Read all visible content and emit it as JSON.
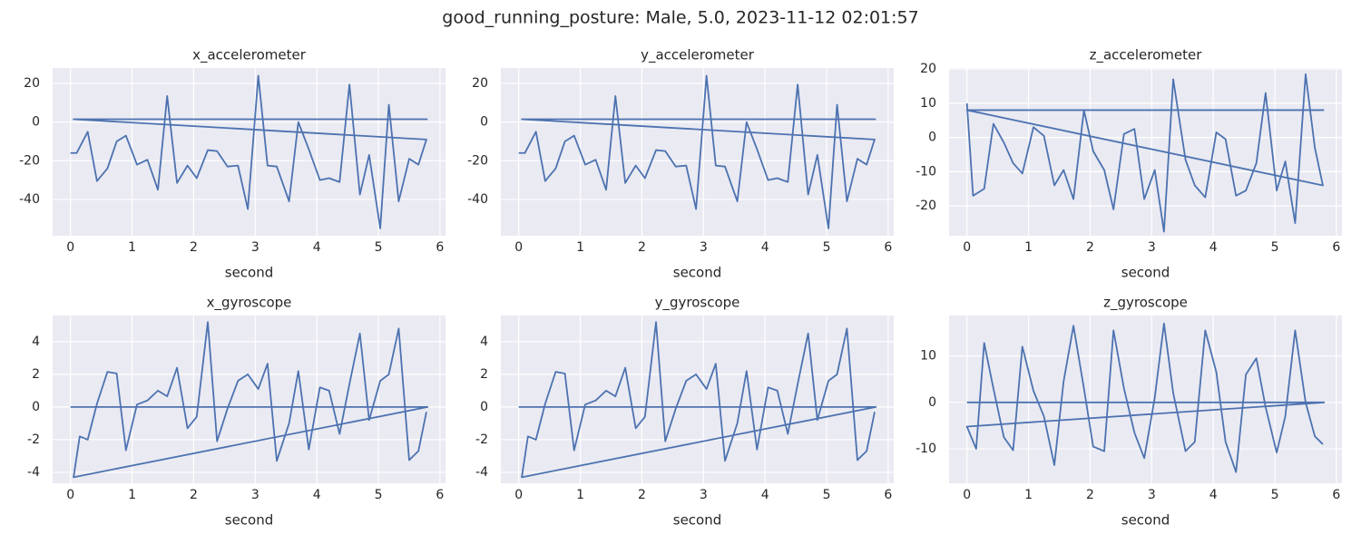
{
  "title": "good_running_posture: Male, 5.0, 2023-11-12 02:01:57",
  "chart_data": [
    {
      "type": "line",
      "title": "x_accelerometer",
      "xlabel": "second",
      "color": "#4c72b0",
      "grid": true,
      "x": [
        0,
        0.1,
        0.28,
        0.43,
        0.6,
        0.75,
        0.9,
        1.08,
        1.25,
        1.42,
        1.57,
        1.73,
        1.9,
        2.05,
        2.23,
        2.38,
        2.55,
        2.72,
        2.88,
        3.05,
        3.2,
        3.35,
        3.55,
        3.7,
        3.87,
        4.05,
        4.2,
        4.37,
        4.53,
        4.7,
        4.85,
        5.03,
        5.17,
        5.33,
        5.5,
        5.65,
        5.78,
        0.05,
        5.8
      ],
      "values": [
        -16,
        -16,
        -5,
        -30.5,
        -24,
        -10,
        -7,
        -22,
        -19.5,
        -35,
        13.5,
        -31.5,
        -22.5,
        -29,
        -14.5,
        -15,
        -23,
        -22.5,
        -45,
        24,
        -22.5,
        -23,
        -41,
        0,
        -14,
        -30,
        -29,
        -31,
        19.5,
        -37.5,
        -17,
        -55,
        9,
        -41,
        -19,
        -22,
        -9,
        1.5,
        1.5
      ],
      "xlim": [
        -0.29,
        6.09
      ],
      "xticks": [
        0,
        1,
        2,
        3,
        4,
        5,
        6
      ],
      "ylim": [
        -58.8,
        28
      ],
      "yticks": [
        -40,
        -20,
        0,
        20
      ]
    },
    {
      "type": "line",
      "title": "y_accelerometer",
      "xlabel": "second",
      "color": "#4c72b0",
      "grid": true,
      "x": [
        0,
        0.1,
        0.28,
        0.43,
        0.6,
        0.75,
        0.9,
        1.08,
        1.25,
        1.42,
        1.57,
        1.73,
        1.9,
        2.05,
        2.23,
        2.38,
        2.55,
        2.72,
        2.88,
        3.05,
        3.2,
        3.35,
        3.55,
        3.7,
        3.87,
        4.05,
        4.2,
        4.37,
        4.53,
        4.7,
        4.85,
        5.03,
        5.17,
        5.33,
        5.5,
        5.65,
        5.78,
        0.05,
        5.8
      ],
      "values": [
        -16,
        -16,
        -5,
        -30.5,
        -24,
        -10,
        -7,
        -22,
        -19.5,
        -35,
        13.5,
        -31.5,
        -22.5,
        -29,
        -14.5,
        -15,
        -23,
        -22.5,
        -45,
        24,
        -22.5,
        -23,
        -41,
        0,
        -14,
        -30,
        -29,
        -31,
        19.5,
        -37.5,
        -17,
        -55,
        9,
        -41,
        -19,
        -22,
        -9,
        1.5,
        1.5
      ],
      "xlim": [
        -0.29,
        6.09
      ],
      "xticks": [
        0,
        1,
        2,
        3,
        4,
        5,
        6
      ],
      "ylim": [
        -58.8,
        28
      ],
      "yticks": [
        -40,
        -20,
        0,
        20
      ]
    },
    {
      "type": "line",
      "title": "z_accelerometer",
      "xlabel": "second",
      "color": "#4c72b0",
      "grid": true,
      "x": [
        0,
        0.1,
        0.28,
        0.43,
        0.6,
        0.75,
        0.9,
        1.08,
        1.25,
        1.42,
        1.57,
        1.73,
        1.9,
        2.05,
        2.23,
        2.38,
        2.55,
        2.72,
        2.88,
        3.05,
        3.2,
        3.35,
        3.55,
        3.7,
        3.87,
        4.05,
        4.2,
        4.37,
        4.53,
        4.7,
        4.85,
        5.03,
        5.17,
        5.33,
        5.5,
        5.65,
        5.78,
        0,
        5.8
      ],
      "values": [
        10,
        -17,
        -15,
        4,
        -1.5,
        -7.5,
        -10.5,
        3,
        0.5,
        -14,
        -9.5,
        -18,
        8,
        -4,
        -9.5,
        -21,
        1,
        2.5,
        -18,
        -9.5,
        -27.5,
        17,
        -6.5,
        -14,
        -17.5,
        1.5,
        -0.5,
        -17,
        -15.5,
        -7.5,
        13,
        -15.5,
        -7,
        -25,
        18.5,
        -3,
        -14,
        8,
        8
      ],
      "xlim": [
        -0.29,
        6.09
      ],
      "xticks": [
        0,
        1,
        2,
        3,
        4,
        5,
        6
      ],
      "ylim": [
        -28.7,
        20.3
      ],
      "yticks": [
        -20,
        -10,
        0,
        10,
        20
      ]
    },
    {
      "type": "line",
      "title": "x_gyroscope",
      "xlabel": "second",
      "color": "#4c72b0",
      "grid": true,
      "x": [
        0,
        5.8,
        0.05,
        0.15,
        0.28,
        0.43,
        0.6,
        0.75,
        0.9,
        1.08,
        1.25,
        1.42,
        1.57,
        1.73,
        1.9,
        2.05,
        2.23,
        2.38,
        2.55,
        2.72,
        2.88,
        3.05,
        3.2,
        3.35,
        3.55,
        3.7,
        3.87,
        4.05,
        4.2,
        4.37,
        4.53,
        4.7,
        4.85,
        5.03,
        5.17,
        5.33,
        5.5,
        5.65,
        5.78
      ],
      "values": [
        0,
        0,
        -4.3,
        -1.8,
        -2,
        0.2,
        2.15,
        2.05,
        -2.65,
        0.15,
        0.4,
        1,
        0.65,
        2.4,
        -1.3,
        -0.6,
        5.2,
        -2.1,
        -0.1,
        1.6,
        2,
        1.1,
        2.65,
        -3.3,
        -1,
        2.2,
        -2.6,
        1.2,
        1,
        -1.65,
        1.4,
        4.5,
        -0.8,
        1.6,
        2,
        4.8,
        -3.25,
        -2.7,
        -0.3
      ],
      "xlim": [
        -0.29,
        6.09
      ],
      "xticks": [
        0,
        1,
        2,
        3,
        4,
        5,
        6
      ],
      "ylim": [
        -4.67,
        5.6
      ],
      "yticks": [
        -4,
        -2,
        0,
        2,
        4
      ]
    },
    {
      "type": "line",
      "title": "y_gyroscope",
      "xlabel": "second",
      "color": "#4c72b0",
      "grid": true,
      "x": [
        0,
        5.8,
        0.05,
        0.15,
        0.28,
        0.43,
        0.6,
        0.75,
        0.9,
        1.08,
        1.25,
        1.42,
        1.57,
        1.73,
        1.9,
        2.05,
        2.23,
        2.38,
        2.55,
        2.72,
        2.88,
        3.05,
        3.2,
        3.35,
        3.55,
        3.7,
        3.87,
        4.05,
        4.2,
        4.37,
        4.53,
        4.7,
        4.85,
        5.03,
        5.17,
        5.33,
        5.5,
        5.65,
        5.78
      ],
      "values": [
        0,
        0,
        -4.3,
        -1.8,
        -2,
        0.2,
        2.15,
        2.05,
        -2.65,
        0.15,
        0.4,
        1,
        0.65,
        2.4,
        -1.3,
        -0.6,
        5.2,
        -2.1,
        -0.1,
        1.6,
        2,
        1.1,
        2.65,
        -3.3,
        -1,
        2.2,
        -2.6,
        1.2,
        1,
        -1.65,
        1.4,
        4.5,
        -0.8,
        1.6,
        2,
        4.8,
        -3.25,
        -2.7,
        -0.3
      ],
      "xlim": [
        -0.29,
        6.09
      ],
      "xticks": [
        0,
        1,
        2,
        3,
        4,
        5,
        6
      ],
      "ylim": [
        -4.67,
        5.6
      ],
      "yticks": [
        -4,
        -2,
        0,
        2,
        4
      ]
    },
    {
      "type": "line",
      "title": "z_gyroscope",
      "xlabel": "second",
      "color": "#4c72b0",
      "grid": true,
      "x": [
        0,
        5.8,
        0,
        0.15,
        0.28,
        0.43,
        0.6,
        0.75,
        0.9,
        1.08,
        1.25,
        1.42,
        1.57,
        1.73,
        1.9,
        2.05,
        2.23,
        2.38,
        2.55,
        2.72,
        2.88,
        3.05,
        3.2,
        3.35,
        3.55,
        3.7,
        3.87,
        4.05,
        4.2,
        4.37,
        4.53,
        4.7,
        4.85,
        5.03,
        5.17,
        5.33,
        5.5,
        5.65,
        5.78
      ],
      "values": [
        0,
        0,
        -5.2,
        -10,
        12.8,
        3,
        -7.5,
        -10.3,
        12,
        2.5,
        -3,
        -13.5,
        4.5,
        16.5,
        3,
        -9.5,
        -10.5,
        15.5,
        3,
        -6.5,
        -12,
        1,
        17,
        2,
        -10.5,
        -8.5,
        15.5,
        6.5,
        -8.5,
        -15,
        6,
        9.5,
        -1,
        -10.8,
        -3,
        15.5,
        0,
        -7.3,
        -9
      ],
      "xlim": [
        -0.29,
        6.09
      ],
      "xticks": [
        0,
        1,
        2,
        3,
        4,
        5,
        6
      ],
      "ylim": [
        -17.4,
        18.7
      ],
      "yticks": [
        -10,
        0,
        10
      ]
    }
  ]
}
